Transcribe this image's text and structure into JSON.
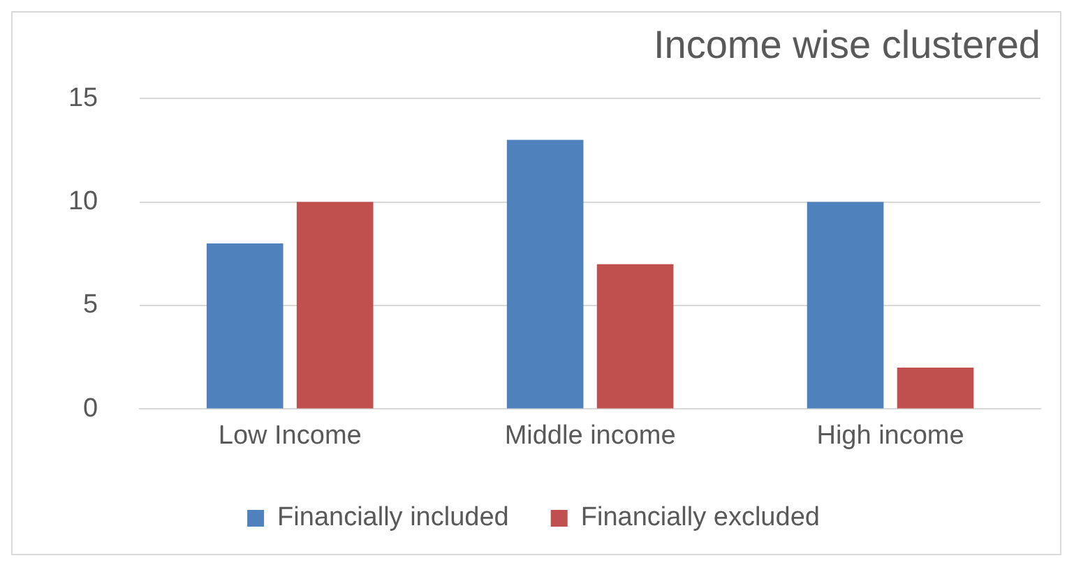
{
  "chart_data": {
    "type": "bar",
    "title": "Income wise clustered",
    "categories": [
      "Low Income",
      "Middle income",
      "High income"
    ],
    "series": [
      {
        "name": "Financially included",
        "color": "#4f81bd",
        "values": [
          8,
          13,
          10
        ]
      },
      {
        "name": "Financially excluded",
        "color": "#c0504d",
        "values": [
          10,
          7,
          2
        ]
      }
    ],
    "ylim": [
      0,
      15
    ],
    "yticks": [
      0,
      5,
      10,
      15
    ],
    "grid": "y",
    "legend": "bottom"
  }
}
